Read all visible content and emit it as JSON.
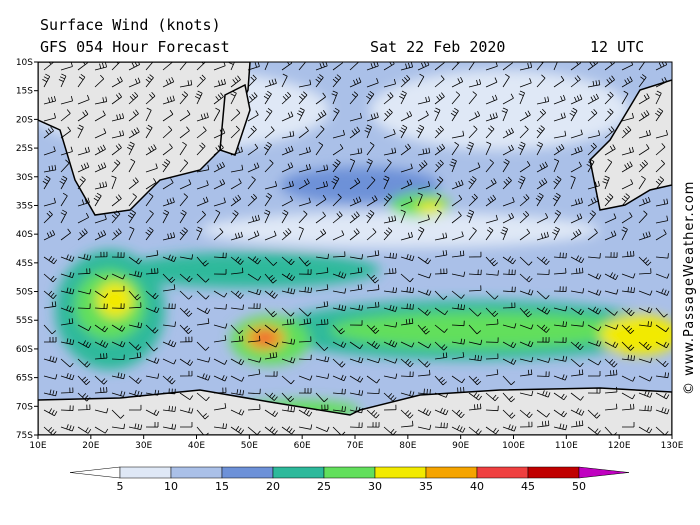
{
  "header": {
    "title": "Surface Wind (knots)",
    "subtitle": "GFS 054 Hour Forecast",
    "date": "Sat 22 Feb 2020",
    "time": "12 UTC"
  },
  "map": {
    "lat_labels": [
      "10S",
      "15S",
      "20S",
      "25S",
      "30S",
      "35S",
      "40S",
      "45S",
      "50S",
      "55S",
      "60S",
      "65S",
      "70S",
      "75S"
    ],
    "lon_labels": [
      "10E",
      "20E",
      "30E",
      "40E",
      "50E",
      "60E",
      "70E",
      "80E",
      "90E",
      "100E",
      "110E",
      "120E",
      "130E"
    ]
  },
  "legend": {
    "labels": [
      "5",
      "10",
      "15",
      "20",
      "25",
      "30",
      "35",
      "40",
      "45",
      "50"
    ],
    "colors": [
      "#ffffff",
      "#dfe8f6",
      "#aac0e8",
      "#6d91d8",
      "#2db99b",
      "#62df5c",
      "#f2ea00",
      "#f5a400",
      "#ef4040",
      "#c00000",
      "#c000c0"
    ]
  },
  "credit": "© www.PassageWeather.com"
}
